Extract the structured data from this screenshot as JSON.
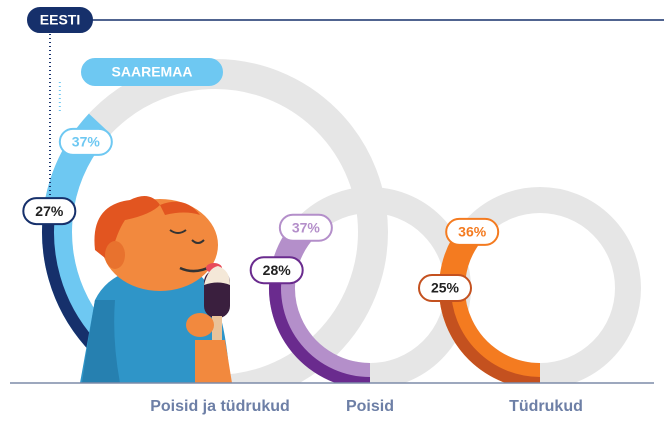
{
  "chart_data": {
    "type": "ring-gauge",
    "categories": [
      "Poisid ja tüdrukud",
      "Poisid",
      "Tüdrukud"
    ],
    "series": [
      {
        "name": "SAAREMAA",
        "color": "#6ec8f2",
        "colors": [
          "#6ec8f2",
          "#b48fca",
          "#f47b20"
        ],
        "values": [
          37,
          37,
          36
        ],
        "value_labels": [
          "37%",
          "37%",
          "36%"
        ]
      },
      {
        "name": "EESTI",
        "color": "#16306b",
        "colors": [
          "#16306b",
          "#6a2b8e",
          "#c4511f"
        ],
        "values": [
          27,
          28,
          25
        ],
        "value_labels": [
          "27%",
          "28%",
          "25%"
        ]
      }
    ],
    "ylim": [
      0,
      100
    ]
  }
}
